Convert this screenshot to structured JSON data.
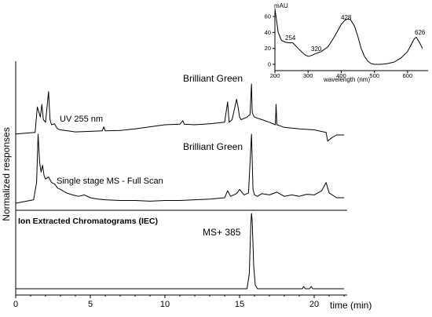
{
  "chart_data": [
    {
      "type": "line",
      "title": "",
      "xlabel": "time (min)",
      "ylabel": "Normalized responses",
      "xlim": [
        0,
        23
      ],
      "xticks": [
        0,
        5,
        10,
        15,
        20
      ],
      "grid": false,
      "panels": [
        {
          "series": [
            {
              "name": "UV 255 nm",
              "peak_label": "Brilliant Green",
              "x": [
                0,
                1.3,
                1.45,
                1.55,
                1.65,
                1.75,
                1.85,
                2.0,
                2.2,
                2.3,
                2.4,
                2.6,
                2.8,
                3.0,
                3.5,
                4.0,
                5.0,
                5.8,
                5.9,
                6.0,
                7.0,
                8.0,
                9.0,
                10.0,
                11.0,
                11.2,
                11.3,
                12.0,
                13.0,
                14.0,
                14.2,
                14.3,
                14.5,
                14.8,
                14.9,
                15.0,
                15.1,
                15.5,
                15.7,
                15.8,
                15.85,
                15.9,
                16.0,
                16.5,
                17.0,
                17.4,
                17.45,
                17.5,
                18.0,
                19.0,
                20.0,
                20.8,
                20.9,
                21.2,
                21.5,
                22.0
              ],
              "y": [
                0.02,
                0.05,
                0.55,
                0.45,
                0.35,
                0.6,
                0.3,
                0.25,
                0.85,
                0.3,
                0.2,
                0.22,
                0.12,
                0.1,
                0.08,
                0.06,
                0.07,
                0.08,
                0.16,
                0.08,
                0.09,
                0.12,
                0.16,
                0.2,
                0.21,
                0.28,
                0.21,
                0.2,
                0.22,
                0.25,
                0.65,
                0.25,
                0.3,
                0.7,
                0.55,
                0.35,
                0.3,
                0.35,
                0.4,
                1.0,
                0.45,
                0.4,
                0.35,
                0.3,
                0.25,
                0.2,
                0.6,
                0.2,
                0.15,
                0.12,
                0.1,
                0.05,
                -0.12,
                -0.05,
                0.0,
                0.0
              ]
            },
            {
              "name": "Single stage MS - Full Scan",
              "peak_label": "Brilliant Green",
              "x": [
                0,
                1.2,
                1.4,
                1.5,
                1.6,
                1.7,
                1.8,
                1.9,
                2.0,
                2.2,
                2.4,
                2.6,
                2.8,
                3.0,
                3.4,
                3.8,
                4.2,
                4.6,
                5.0,
                5.5,
                6.0,
                7.0,
                8.0,
                9.0,
                10.0,
                11.0,
                12.0,
                13.0,
                14.0,
                14.2,
                14.4,
                14.8,
                15.0,
                15.3,
                15.6,
                15.8,
                15.9,
                16.0,
                16.2,
                16.5,
                17.0,
                17.5,
                18.0,
                18.5,
                19.0,
                19.5,
                20.0,
                20.5,
                20.8,
                21.0,
                21.5,
                22.0
              ],
              "y": [
                0.0,
                0.05,
                0.3,
                1.0,
                0.6,
                0.45,
                0.55,
                0.4,
                0.35,
                0.38,
                0.3,
                0.28,
                0.22,
                0.2,
                0.15,
                0.12,
                0.1,
                0.12,
                0.08,
                0.06,
                0.05,
                0.04,
                0.04,
                0.03,
                0.04,
                0.04,
                0.05,
                0.06,
                0.08,
                0.18,
                0.1,
                0.14,
                0.2,
                0.12,
                0.15,
                1.0,
                0.2,
                0.12,
                0.1,
                0.14,
                0.12,
                0.16,
                0.1,
                0.12,
                0.1,
                0.13,
                0.12,
                0.18,
                0.3,
                0.15,
                0.08,
                0.08
              ]
            }
          ]
        },
        {
          "heading": "Ion Extracted Chromatograms (IEC)",
          "series": [
            {
              "name": "MS+ 385",
              "x": [
                0,
                15.5,
                15.65,
                15.75,
                15.8,
                15.85,
                15.95,
                16.05,
                16.2,
                19.2,
                19.3,
                19.4,
                19.7,
                19.8,
                19.9,
                22.0
              ],
              "y": [
                0.0,
                0.0,
                0.2,
                0.85,
                1.0,
                0.9,
                0.3,
                0.05,
                0.0,
                0.0,
                0.03,
                0.0,
                0.0,
                0.03,
                0.0,
                0.0
              ]
            }
          ]
        }
      ]
    },
    {
      "type": "line",
      "title": "",
      "xlabel": "wavelength (nm)",
      "ylabel": "mAU",
      "xlim": [
        200,
        650
      ],
      "ylim": [
        -5,
        72
      ],
      "xticks": [
        200,
        300,
        400,
        500,
        600
      ],
      "yticks": [
        0,
        20,
        40,
        60
      ],
      "grid": false,
      "annotations": [
        "254",
        "320",
        "428",
        "626"
      ],
      "series": [
        {
          "x": [
            200,
            205,
            210,
            220,
            230,
            240,
            254,
            270,
            290,
            300,
            310,
            320,
            340,
            360,
            380,
            400,
            410,
            420,
            428,
            440,
            450,
            460,
            470,
            480,
            490,
            500,
            520,
            540,
            560,
            580,
            600,
            610,
            620,
            626,
            635,
            645
          ],
          "y": [
            70,
            55,
            40,
            30,
            28,
            27,
            27,
            20,
            12,
            10,
            11,
            13,
            16,
            22,
            35,
            50,
            55,
            57,
            56,
            48,
            35,
            20,
            10,
            4,
            1,
            0,
            0,
            1,
            3,
            8,
            16,
            24,
            32,
            34,
            28,
            20
          ]
        }
      ]
    }
  ]
}
